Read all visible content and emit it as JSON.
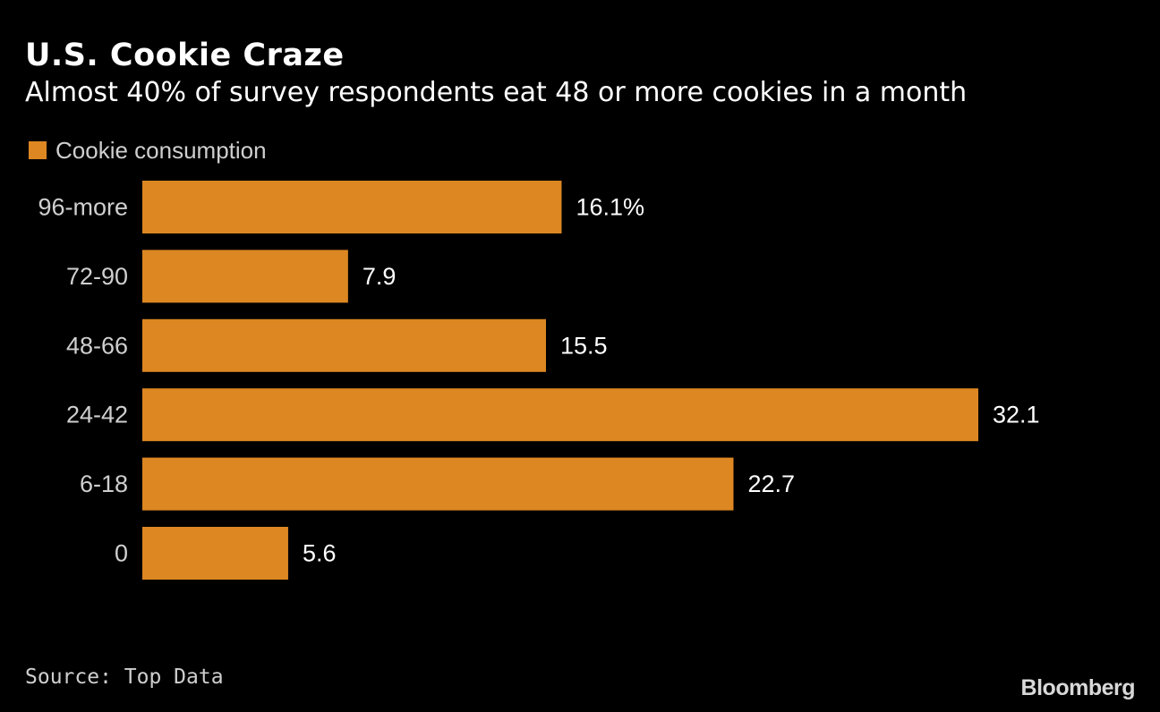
{
  "colors": {
    "background": "#000000",
    "bar": "#dc8722",
    "text": "#ffffff",
    "muted": "#cfcfcf"
  },
  "chart_data": {
    "type": "bar",
    "orientation": "horizontal",
    "title": "U.S. Cookie Craze",
    "subtitle": "Almost 40% of survey respondents eat 48 or more cookies in a month",
    "legend": [
      "Cookie consumption"
    ],
    "categories": [
      "96-more",
      "72-90",
      "48-66",
      "24-42",
      "6-18",
      "0"
    ],
    "values": [
      16.1,
      7.9,
      15.5,
      32.1,
      22.7,
      5.6
    ],
    "data_labels": [
      "16.1%",
      "7.9",
      "15.5",
      "32.1",
      "22.7",
      "5.6"
    ],
    "xlim": [
      0,
      32.1
    ],
    "grid": false,
    "source": "Source: Top Data"
  },
  "footer": {
    "source": "Source: Top Data",
    "brand": "Bloomberg"
  }
}
